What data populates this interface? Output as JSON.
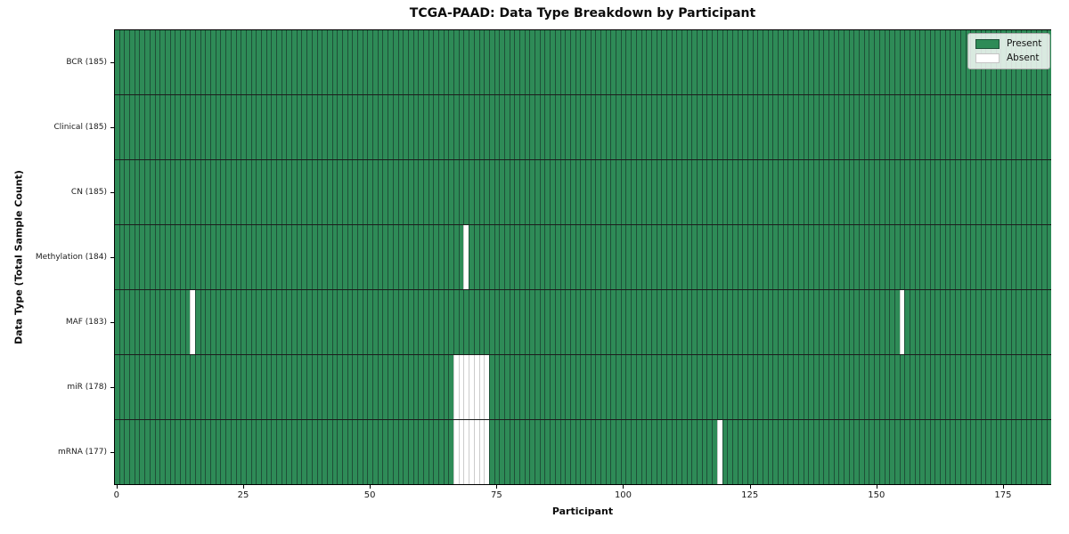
{
  "chart_data": {
    "type": "heatmap",
    "title": "TCGA-PAAD: Data Type Breakdown by Participant",
    "xlabel": "Participant",
    "ylabel": "Data Type (Total Sample Count)",
    "n_participants": 185,
    "x_range": [
      0,
      184
    ],
    "x_ticks": [
      0,
      25,
      50,
      75,
      100,
      125,
      150,
      175
    ],
    "grid": false,
    "legend_position": "upper right",
    "rows": [
      {
        "label": "BCR (185)",
        "data_type": "BCR",
        "total_samples": 185,
        "absent_participants": []
      },
      {
        "label": "Clinical (185)",
        "data_type": "Clinical",
        "total_samples": 185,
        "absent_participants": []
      },
      {
        "label": "CN (185)",
        "data_type": "CN",
        "total_samples": 185,
        "absent_participants": []
      },
      {
        "label": "Methylation (184)",
        "data_type": "Methylation",
        "total_samples": 184,
        "absent_participants": [
          69
        ]
      },
      {
        "label": "MAF (183)",
        "data_type": "MAF",
        "total_samples": 183,
        "absent_participants": [
          15,
          155
        ]
      },
      {
        "label": "miR (178)",
        "data_type": "miR",
        "total_samples": 178,
        "absent_participants": [
          67,
          68,
          69,
          70,
          71,
          72,
          73
        ]
      },
      {
        "label": "mRNA (177)",
        "data_type": "mRNA",
        "total_samples": 177,
        "absent_participants": [
          67,
          68,
          69,
          70,
          71,
          72,
          73,
          119
        ]
      }
    ],
    "legend": [
      {
        "label": "Present",
        "color": "#2e8b57"
      },
      {
        "label": "Absent",
        "color": "#ffffff"
      }
    ],
    "colors": {
      "present": "#2e8b57",
      "absent": "#ffffff",
      "cell_edge_on_present": "#1e5038",
      "cell_edge_on_absent": "#cccccc",
      "row_divider": "#1c1c1c",
      "spine": "#000000"
    }
  }
}
